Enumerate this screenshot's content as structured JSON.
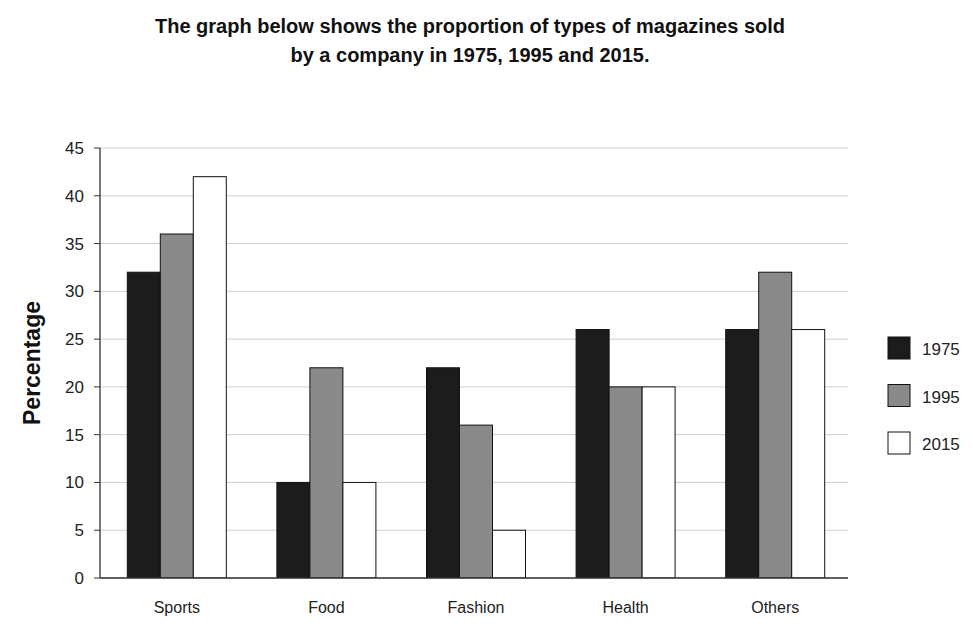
{
  "chart_data": {
    "type": "bar",
    "title": "The graph below shows the proportion of types of magazines sold by a company in 1975, 1995 and 2015.",
    "y_label": "Percentage",
    "categories": [
      "Sports",
      "Food",
      "Fashion",
      "Health",
      "Others"
    ],
    "series": [
      {
        "name": "1975",
        "color": "#1c1c1c",
        "values": [
          32,
          10,
          22,
          26,
          26
        ]
      },
      {
        "name": "1995",
        "color": "#8a8a8a",
        "values": [
          36,
          22,
          16,
          20,
          32
        ]
      },
      {
        "name": "2015",
        "color": "#ffffff",
        "values": [
          42,
          10,
          5,
          20,
          26
        ]
      }
    ],
    "ylim": [
      0,
      45
    ],
    "yticks": [
      0,
      5,
      10,
      15,
      20,
      25,
      30,
      35,
      40,
      45
    ],
    "grid": true,
    "legend": "right"
  }
}
